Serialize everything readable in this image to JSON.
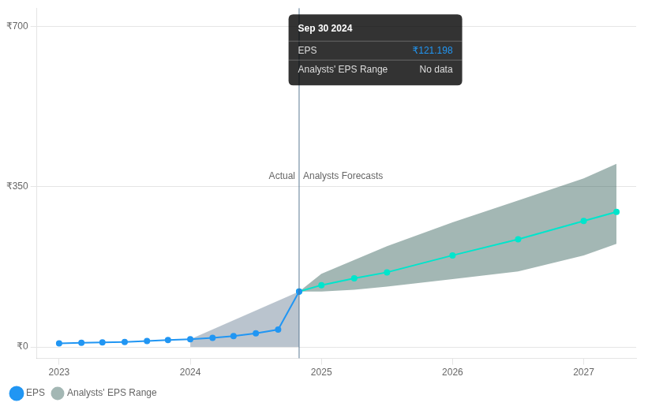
{
  "chart_data": {
    "type": "line",
    "series": [
      {
        "name": "EPS",
        "type": "line",
        "color": "#2196f3",
        "marker": "circle",
        "x": [
          2023.0,
          2023.17,
          2023.33,
          2023.5,
          2023.67,
          2023.83,
          2024.0,
          2024.17,
          2024.33,
          2024.5,
          2024.67,
          2024.83
        ],
        "values": [
          8,
          9,
          10,
          11,
          13,
          15,
          17,
          20,
          24,
          30,
          38,
          121.198
        ]
      },
      {
        "type": "line",
        "color": "#00e5cc",
        "marker": "circle",
        "x": [
          2024.83,
          2025.0,
          2025.25,
          2025.5,
          2026.0,
          2026.5,
          2027.0,
          2027.25
        ],
        "values": [
          121.198,
          135,
          150,
          163,
          200,
          235,
          275,
          295
        ]
      },
      {
        "name": "Analysts' EPS Range",
        "type": "band",
        "color": "#1a4a44",
        "x": [
          2024.83,
          2025.0,
          2025.25,
          2025.5,
          2026.0,
          2026.5,
          2027.0,
          2027.25
        ],
        "lower": [
          121.198,
          121.198,
          125,
          132,
          148,
          165,
          200,
          225
        ],
        "upper": [
          121.198,
          160,
          190,
          220,
          272,
          320,
          368,
          400
        ]
      },
      {
        "type": "band",
        "color": "#1a3a5c",
        "x": [
          2024.0,
          2024.83
        ],
        "lower": [
          0,
          0
        ],
        "upper": [
          17,
          121.198
        ]
      }
    ],
    "xlim": [
      2022.83,
      2027.4
    ],
    "xticks": [
      2023,
      2024,
      2025,
      2026,
      2027
    ],
    "ylim": [
      -25,
      740
    ],
    "yticks": [
      {
        "value": 0,
        "label": "₹0"
      },
      {
        "value": 350,
        "label": "₹350"
      },
      {
        "value": 700,
        "label": "₹700"
      }
    ],
    "grid": "y",
    "legend": "bottom left",
    "annotations": [
      {
        "type": "vline",
        "x": 2024.83
      },
      {
        "type": "text",
        "text": "Actual",
        "x": 2024.83,
        "y": 358,
        "align": "right"
      },
      {
        "type": "text",
        "text": "Analysts Forecasts",
        "x": 2024.83,
        "y": 358,
        "align": "left"
      }
    ],
    "tooltip": {
      "title": "Sep 30 2024",
      "rows": [
        {
          "label": "EPS",
          "value": "₹121.198",
          "color": "#2196f3"
        },
        {
          "label": "Analysts' EPS Range",
          "value": "No data"
        }
      ]
    }
  }
}
